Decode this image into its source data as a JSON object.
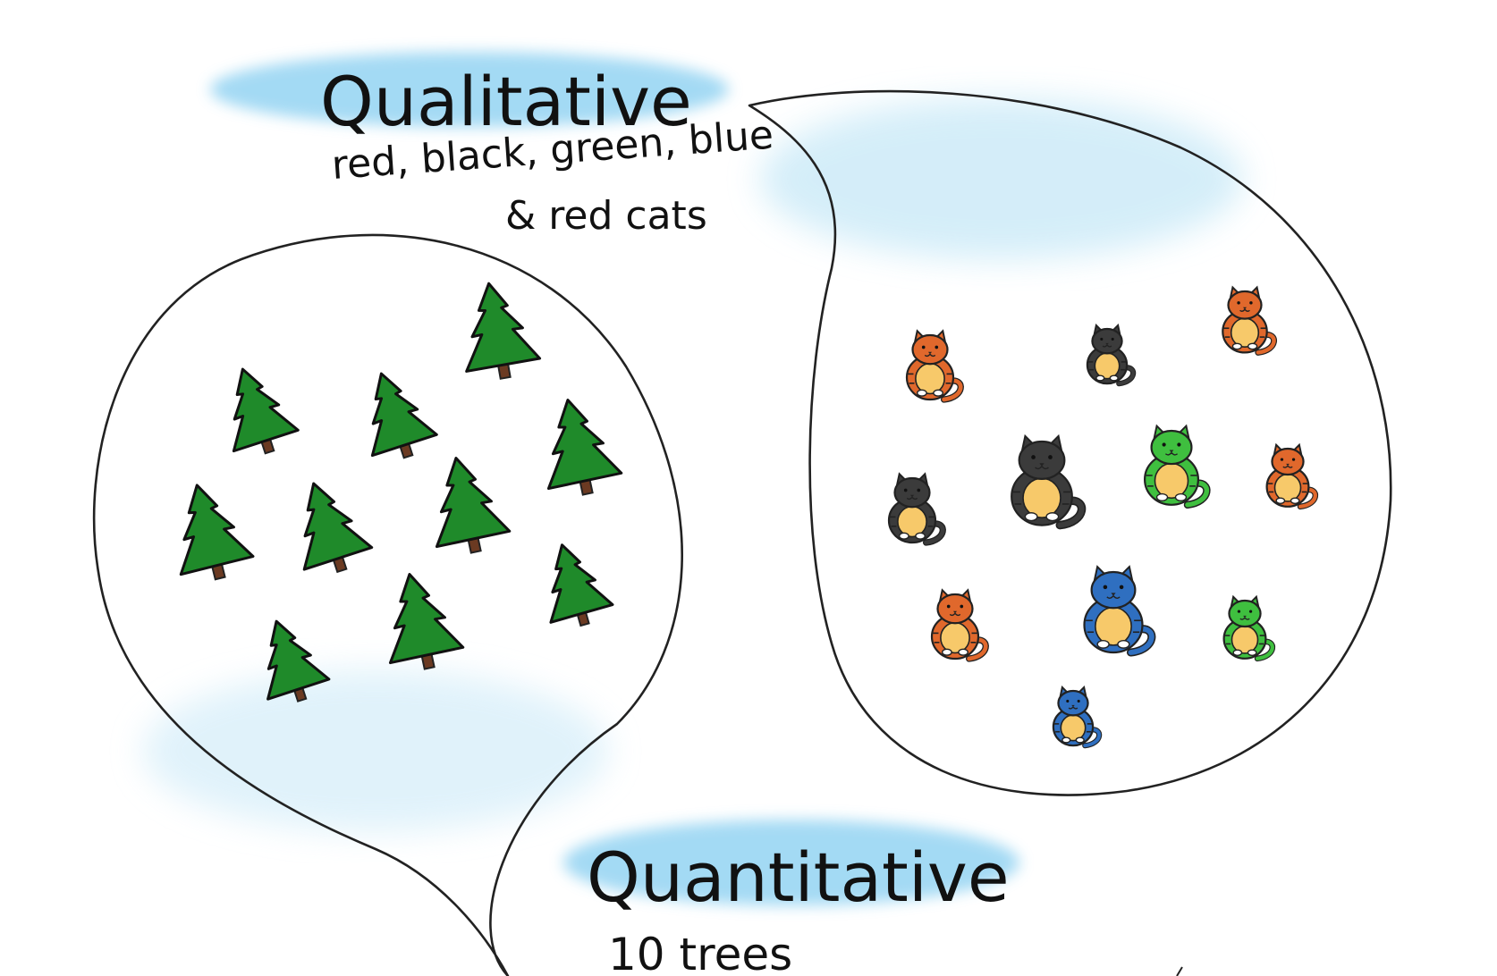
{
  "qualitative": {
    "title": "Qualitative",
    "line1": "red, black, green, blue",
    "line2": "& red  cats"
  },
  "quantitative": {
    "title": "Quantitative",
    "caption": "10 trees"
  },
  "colors": {
    "wash": "#9ad6f3",
    "tree_green": "#1f8a2a",
    "trunk": "#6b3a22",
    "cat_orange": "#e0682c",
    "cat_black": "#3b3b3b",
    "cat_green": "#3fbf3f",
    "cat_blue": "#2f6fc0",
    "cat_belly": "#f7c96a"
  },
  "trees": [
    {
      "size": 1.0
    },
    {
      "size": 1.0
    },
    {
      "size": 1.1
    },
    {
      "size": 1.1
    },
    {
      "size": 1.1
    },
    {
      "size": 1.05
    },
    {
      "size": 1.1
    },
    {
      "size": 0.95
    },
    {
      "size": 1.1
    },
    {
      "size": 0.95
    }
  ],
  "cats": [
    {
      "color": "cat_orange",
      "size": 1.0
    },
    {
      "color": "cat_black",
      "size": 0.85
    },
    {
      "color": "cat_orange",
      "size": 0.95
    },
    {
      "color": "cat_black",
      "size": 1.0
    },
    {
      "color": "cat_black",
      "size": 1.3
    },
    {
      "color": "cat_green",
      "size": 1.15
    },
    {
      "color": "cat_orange",
      "size": 0.9
    },
    {
      "color": "cat_orange",
      "size": 1.0
    },
    {
      "color": "cat_blue",
      "size": 1.25
    },
    {
      "color": "cat_green",
      "size": 0.9
    },
    {
      "color": "cat_blue",
      "size": 0.85
    }
  ]
}
